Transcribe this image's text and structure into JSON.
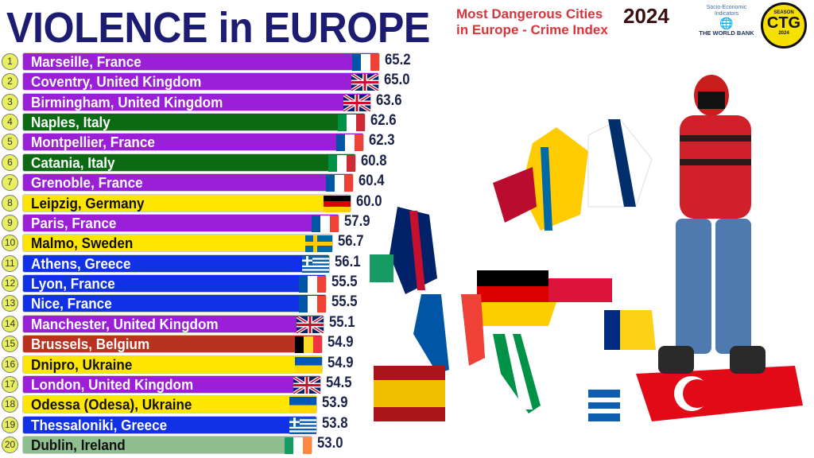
{
  "header": {
    "title": "VIOLENCE in EUROPE",
    "subtitle_line1": "Most Dangerous Cities",
    "subtitle_line2": "in Europe - Crime Index",
    "year": "2024",
    "logo_worldbank": {
      "line1": "Socio-Economic",
      "line2": "Indicators",
      "name": "THE WORLD BANK"
    },
    "logo_badge": {
      "top": "SEASON",
      "mark": "CTG",
      "bottom": "2024"
    }
  },
  "colors": {
    "purple": "#9a1fd6",
    "green": "#0b6a12",
    "yellow": "#ffe600",
    "blue": "#1131e6",
    "brown": "#b8321f",
    "palegreen": "#8fbe90",
    "title": "#1c1c72"
  },
  "chart_data": {
    "type": "bar",
    "orientation": "horizontal",
    "title": "VIOLENCE in EUROPE",
    "subtitle": "Most Dangerous Cities in Europe - Crime Index 2024",
    "xlim": [
      0,
      65.2
    ],
    "items": [
      {
        "rank": "1",
        "label": "Marseille, France",
        "value": 65.2,
        "flag": "fr",
        "color": "purple"
      },
      {
        "rank": "2",
        "label": "Coventry, United Kingdom",
        "value": 65.0,
        "flag": "uk",
        "color": "purple"
      },
      {
        "rank": "3",
        "label": "Birmingham, United Kingdom",
        "value": 63.6,
        "flag": "uk",
        "color": "purple"
      },
      {
        "rank": "4",
        "label": "Naples, Italy",
        "value": 62.6,
        "flag": "it",
        "color": "green"
      },
      {
        "rank": "5",
        "label": "Montpellier, France",
        "value": 62.3,
        "flag": "fr",
        "color": "purple"
      },
      {
        "rank": "6",
        "label": "Catania, Italy",
        "value": 60.8,
        "flag": "it",
        "color": "green"
      },
      {
        "rank": "7",
        "label": "Grenoble, France",
        "value": 60.4,
        "flag": "fr",
        "color": "purple"
      },
      {
        "rank": "8",
        "label": "Leipzig, Germany",
        "value": 60.0,
        "flag": "de",
        "color": "yellow"
      },
      {
        "rank": "9",
        "label": "Paris, France",
        "value": 57.9,
        "flag": "fr",
        "color": "purple"
      },
      {
        "rank": "10",
        "label": "Malmo, Sweden",
        "value": 56.7,
        "flag": "se",
        "color": "yellow"
      },
      {
        "rank": "11",
        "label": "Athens, Greece",
        "value": 56.1,
        "flag": "gr",
        "color": "blue"
      },
      {
        "rank": "12",
        "label": "Lyon, France",
        "value": 55.5,
        "flag": "fr",
        "color": "blue"
      },
      {
        "rank": "13",
        "label": "Nice, France",
        "value": 55.5,
        "flag": "fr",
        "color": "blue"
      },
      {
        "rank": "14",
        "label": "Manchester, United Kingdom",
        "value": 55.1,
        "flag": "uk",
        "color": "purple"
      },
      {
        "rank": "15",
        "label": "Brussels, Belgium",
        "value": 54.9,
        "flag": "be",
        "color": "brown"
      },
      {
        "rank": "16",
        "label": "Dnipro, Ukraine",
        "value": 54.9,
        "flag": "ua",
        "color": "yellow"
      },
      {
        "rank": "17",
        "label": "London, United Kingdom",
        "value": 54.5,
        "flag": "uk",
        "color": "purple"
      },
      {
        "rank": "18",
        "label": "Odessa (Odesa), Ukraine",
        "value": 53.9,
        "flag": "ua",
        "color": "yellow"
      },
      {
        "rank": "19",
        "label": "Thessaloniki, Greece",
        "value": 53.8,
        "flag": "gr",
        "color": "blue"
      },
      {
        "rank": "20",
        "label": "Dublin, Ireland",
        "value": 53.0,
        "flag": "ie",
        "color": "palegreen"
      }
    ]
  }
}
